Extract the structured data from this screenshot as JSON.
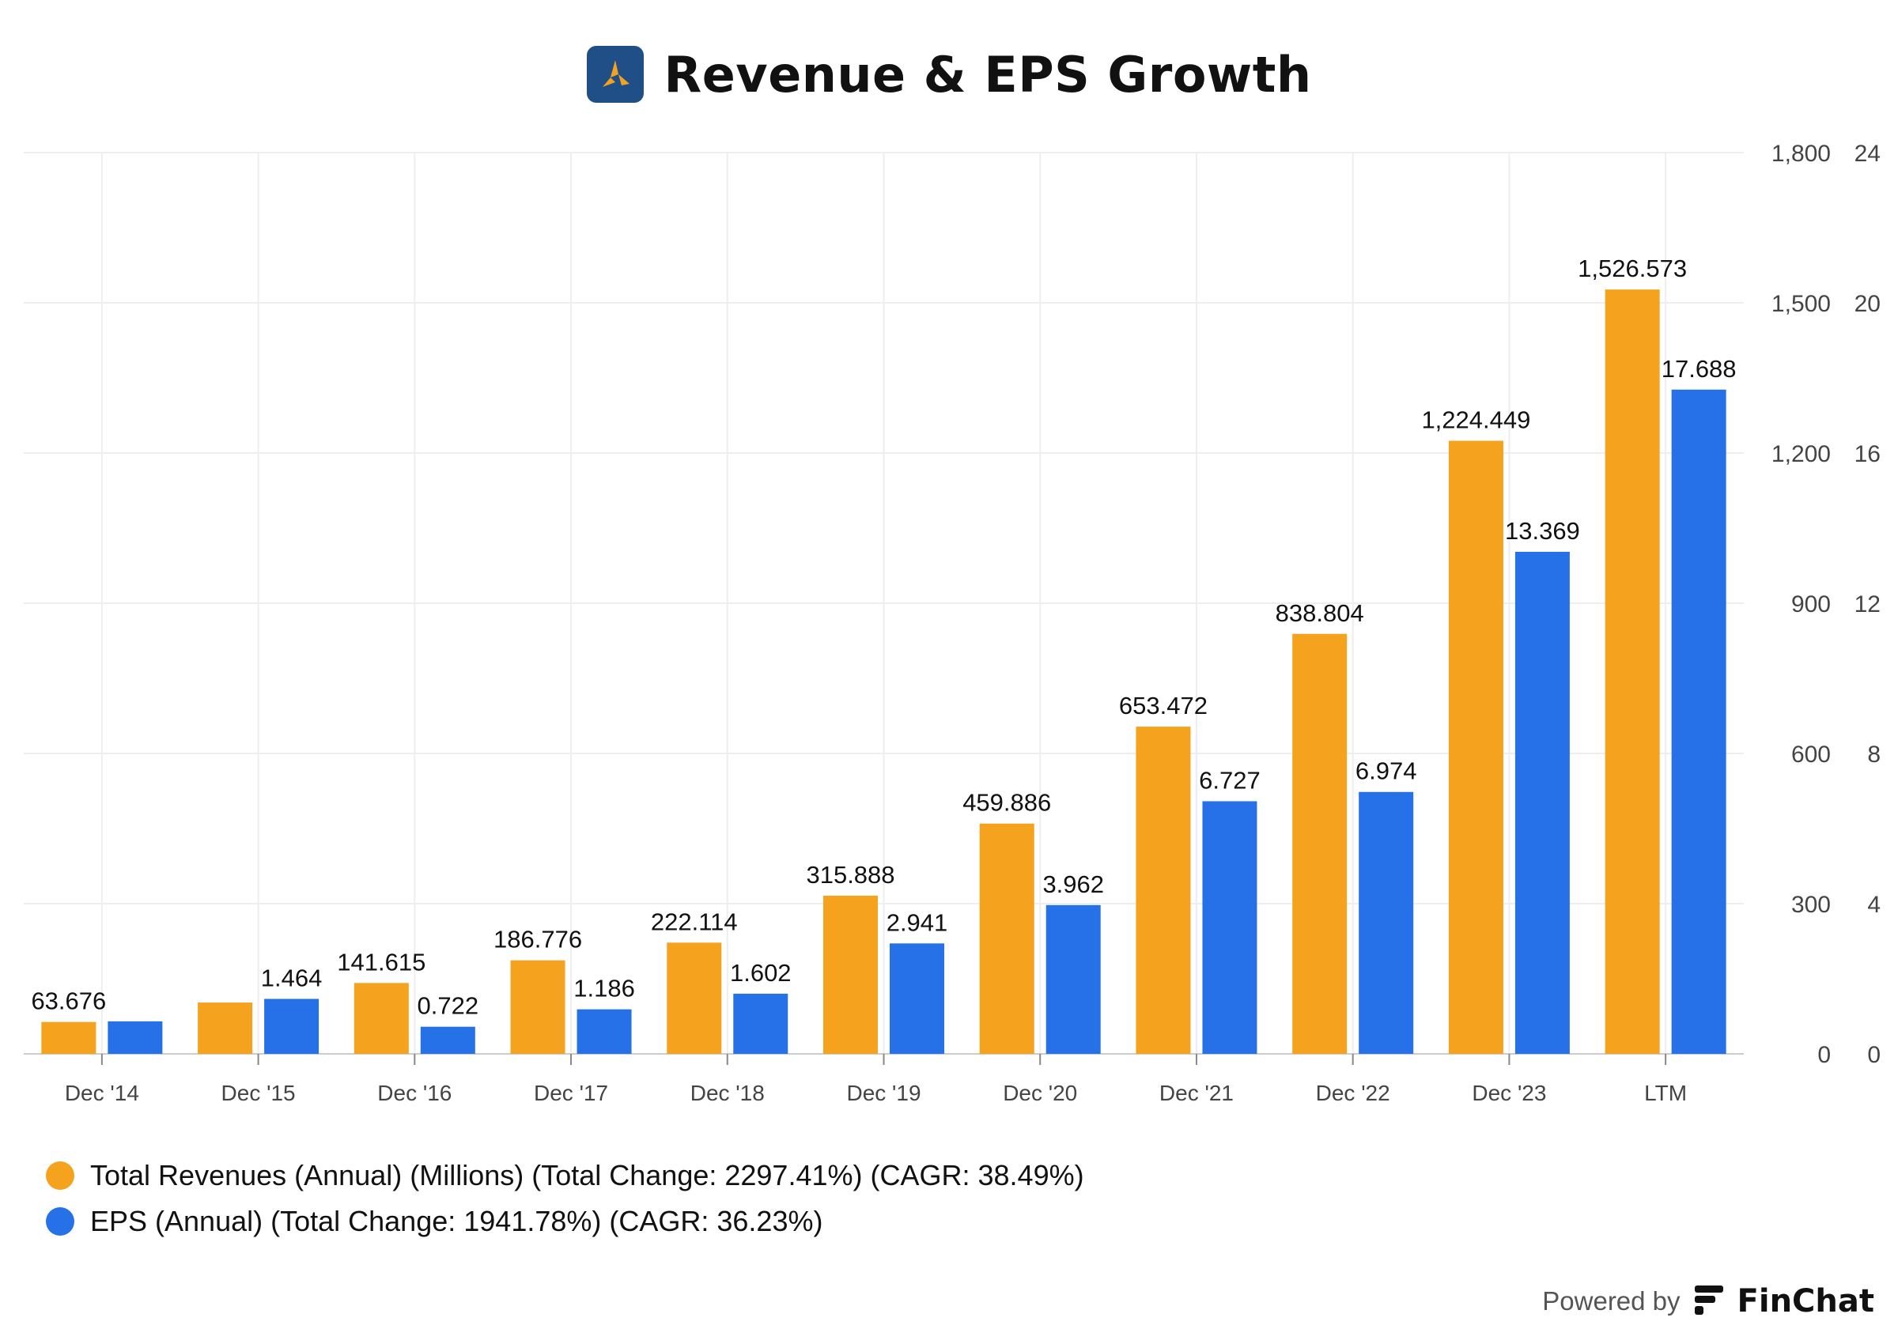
{
  "header": {
    "title": "Revenue & EPS Growth",
    "logo_icon": "company-logo-icon"
  },
  "colors": {
    "revenue": "#F5A21E",
    "eps": "#2771E8",
    "grid": "#EEEEEE",
    "axis": "#CCCCCC",
    "tick": "#444444"
  },
  "chart_data": {
    "type": "bar",
    "categories": [
      "Dec '14",
      "Dec '15",
      "Dec '16",
      "Dec '17",
      "Dec '18",
      "Dec '19",
      "Dec '20",
      "Dec '21",
      "Dec '22",
      "Dec '23",
      "LTM"
    ],
    "series": [
      {
        "name": "Total Revenues (Annual) (Millions) (Total Change: 2297.41%) (CAGR: 38.49%)",
        "axis": "left",
        "values": [
          63.676,
          102.5,
          141.615,
          186.776,
          222.114,
          315.888,
          459.886,
          653.472,
          838.804,
          1224.449,
          1526.573
        ],
        "labels": [
          "63.676",
          "",
          "141.615",
          "186.776",
          "222.114",
          "315.888",
          "459.886",
          "653.472",
          "838.804",
          "1,224.449",
          "1,526.573"
        ]
      },
      {
        "name": "EPS (Annual) (Total Change: 1941.78%) (CAGR: 36.23%)",
        "axis": "right",
        "values": [
          0.866,
          1.464,
          0.722,
          1.186,
          1.602,
          2.941,
          3.962,
          6.727,
          6.974,
          13.369,
          17.688
        ],
        "labels": [
          "",
          "1.464",
          "0.722",
          "1.186",
          "1.602",
          "2.941",
          "3.962",
          "6.727",
          "6.974",
          "13.369",
          "17.688"
        ]
      }
    ],
    "y_left": {
      "range": [
        0,
        1800
      ],
      "ticks": [
        "0",
        "300",
        "600",
        "900",
        "1,200",
        "1,500",
        "1,800"
      ]
    },
    "y_right": {
      "range": [
        0,
        24
      ],
      "ticks": [
        "0",
        "4",
        "8",
        "12",
        "16",
        "20",
        "24"
      ]
    },
    "grid": true,
    "legend_position": "bottom-left"
  },
  "footer": {
    "powered_by": "Powered by",
    "brand": "FinChat",
    "brand_icon": "finchat-logo-icon"
  }
}
